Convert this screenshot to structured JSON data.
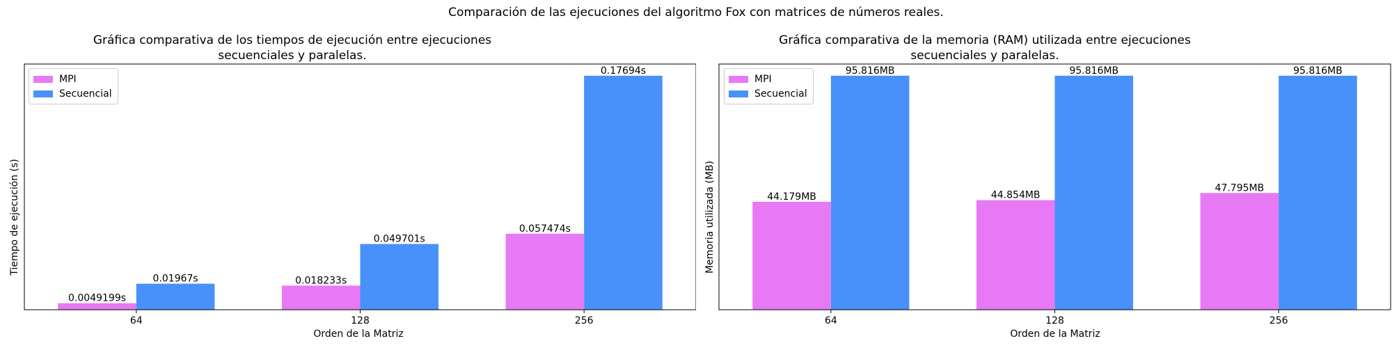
{
  "suptitle": "Comparación de las ejecuciones del algoritmo Fox con matrices de números reales.",
  "colors": {
    "mpi": "#e879f5",
    "secuencial": "#4891fa"
  },
  "chart_data": [
    {
      "type": "bar",
      "title": "Gráfica comparativa de los tiempos de ejecución entre ejecuciones\nsecuenciales y paralelas.",
      "xlabel": "Orden de la Matriz",
      "ylabel": "Tiempo de ejecución (s)",
      "categories": [
        "64",
        "128",
        "256"
      ],
      "ylim": [
        0,
        0.1858
      ],
      "y_ticks_shown": false,
      "legend_position": "upper-left",
      "series": [
        {
          "name": "MPI",
          "color": "#e879f5",
          "values": [
            0.0049199,
            0.018233,
            0.057474
          ],
          "labels": [
            "0.0049199s",
            "0.018233s",
            "0.057474s"
          ]
        },
        {
          "name": "Secuencial",
          "color": "#4891fa",
          "values": [
            0.01967,
            0.049701,
            0.17694
          ],
          "labels": [
            "0.01967s",
            "0.049701s",
            "0.17694s"
          ]
        }
      ]
    },
    {
      "type": "bar",
      "title": "Gráfica comparativa de la memoria (RAM) utilizada entre ejecuciones\nsecuenciales y paralelas.",
      "xlabel": "Orden de la Matriz",
      "ylabel": "Memoria utilizada (MB)",
      "categories": [
        "64",
        "128",
        "256"
      ],
      "ylim": [
        0,
        100.6
      ],
      "y_ticks_shown": false,
      "legend_position": "upper-left",
      "series": [
        {
          "name": "MPI",
          "color": "#e879f5",
          "values": [
            44.179,
            44.854,
            47.795
          ],
          "labels": [
            "44.179MB",
            "44.854MB",
            "47.795MB"
          ]
        },
        {
          "name": "Secuencial",
          "color": "#4891fa",
          "values": [
            95.816,
            95.816,
            95.816
          ],
          "labels": [
            "95.816MB",
            "95.816MB",
            "95.816MB"
          ]
        }
      ]
    }
  ]
}
